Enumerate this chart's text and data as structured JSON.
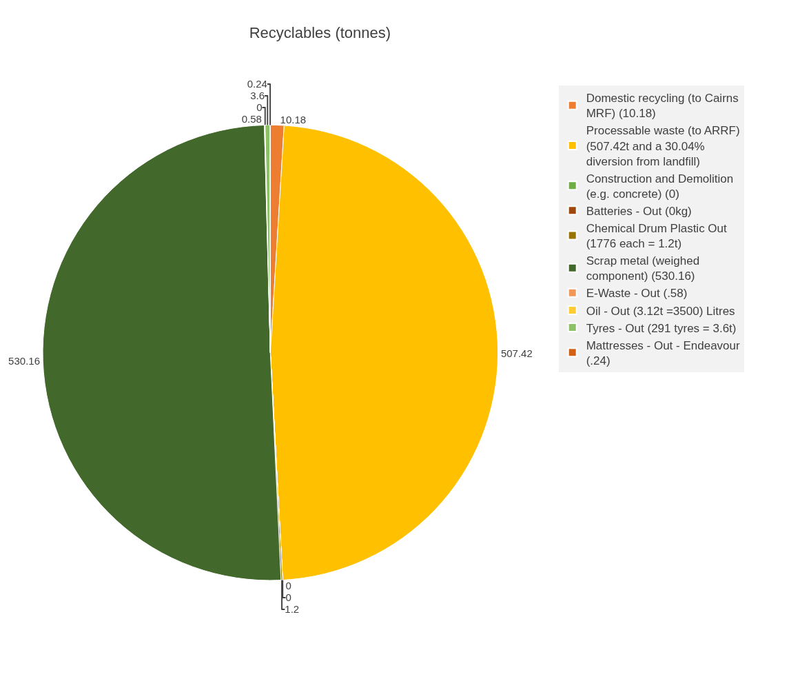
{
  "chart_data": {
    "type": "pie",
    "title": "Recyclables (tonnes)",
    "categories": [
      "Domestic recycling (to Cairns MRF) (10.18)",
      "Processable waste (to ARRF) (507.42t and a 30.04% diversion from landfill)",
      "Construction and Demolition (e.g. concrete) (0)",
      "Batteries - Out (0kg)",
      "Chemical Drum Plastic Out (1776 each = 1.2t)",
      "Scrap metal (weighed component) (530.16)",
      "E-Waste - Out (.58)",
      "Oil - Out (3.12t =3500) Litres",
      "Tyres - Out (291 tyres = 3.6t)",
      "Mattresses - Out - Endeavour (.24)"
    ],
    "values": [
      10.18,
      507.42,
      0,
      0,
      1.2,
      530.16,
      0.58,
      0,
      3.6,
      0.24
    ],
    "colors": [
      "#ed7d31",
      "#ffc000",
      "#70ad47",
      "#9e480e",
      "#997300",
      "#43682b",
      "#f1975a",
      "#ffcd33",
      "#8cc168",
      "#d26012"
    ],
    "value_labels": [
      "10.18",
      "507.42",
      "0",
      "0",
      "1.2",
      "530.16",
      "0.58",
      "0",
      "3.6",
      "0.24"
    ],
    "legend": "right"
  }
}
